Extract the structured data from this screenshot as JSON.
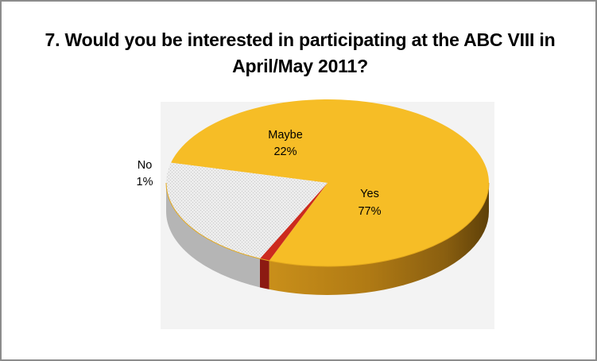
{
  "chart_data": {
    "type": "pie",
    "title": "7. Would you be interested in participating at the ABC VIII in April/May 2011?",
    "slices": [
      {
        "label": "Yes",
        "value": 77,
        "percent_label": "77%",
        "color": "#f6bd26"
      },
      {
        "label": "No",
        "value": 1,
        "percent_label": "1%",
        "color": "#cc2a1e"
      },
      {
        "label": "Maybe",
        "value": 22,
        "percent_label": "22%",
        "color": "#e9e9e9"
      }
    ],
    "plot_area_color": "#f3f3f3",
    "style": "3d-pie"
  }
}
